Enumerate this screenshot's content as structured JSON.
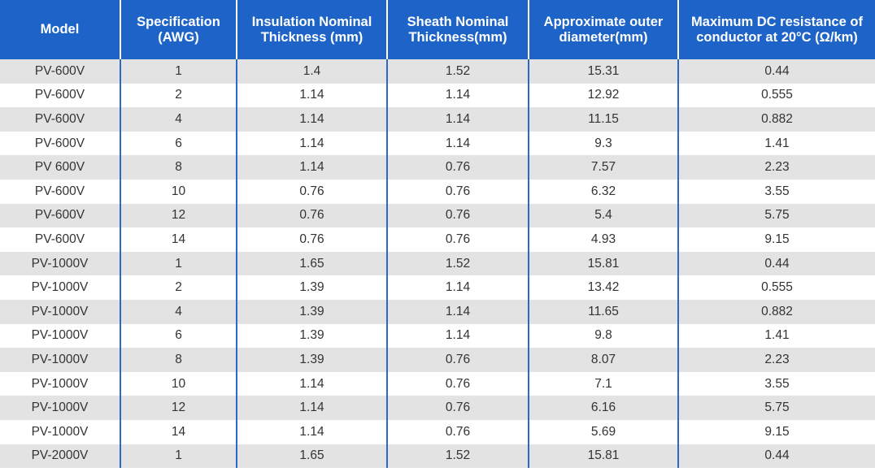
{
  "table": {
    "headers": [
      "Model",
      "Specification (AWG)",
      "Insulation Nominal Thickness (mm)",
      "Sheath Nominal Thickness(mm)",
      "Approximate outer diameter(mm)",
      "Maximum DC resistance of conductor at 20°C (Ω/km)"
    ],
    "rows": [
      [
        "PV-600V",
        "1",
        "1.4",
        "1.52",
        "15.31",
        "0.44"
      ],
      [
        "PV-600V",
        "2",
        "1.14",
        "1.14",
        "12.92",
        "0.555"
      ],
      [
        "PV-600V",
        "4",
        "1.14",
        "1.14",
        "11.15",
        "0.882"
      ],
      [
        "PV-600V",
        "6",
        "1.14",
        "1.14",
        "9.3",
        "1.41"
      ],
      [
        "PV 600V",
        "8",
        "1.14",
        "0.76",
        "7.57",
        "2.23"
      ],
      [
        "PV-600V",
        "10",
        "0.76",
        "0.76",
        "6.32",
        "3.55"
      ],
      [
        "PV-600V",
        "12",
        "0.76",
        "0.76",
        "5.4",
        "5.75"
      ],
      [
        "PV-600V",
        "14",
        "0.76",
        "0.76",
        "4.93",
        "9.15"
      ],
      [
        "PV-1000V",
        "1",
        "1.65",
        "1.52",
        "15.81",
        "0.44"
      ],
      [
        "PV-1000V",
        "2",
        "1.39",
        "1.14",
        "13.42",
        "0.555"
      ],
      [
        "PV-1000V",
        "4",
        "1.39",
        "1.14",
        "11.65",
        "0.882"
      ],
      [
        "PV-1000V",
        "6",
        "1.39",
        "1.14",
        "9.8",
        "1.41"
      ],
      [
        "PV-1000V",
        "8",
        "1.39",
        "0.76",
        "8.07",
        "2.23"
      ],
      [
        "PV-1000V",
        "10",
        "1.14",
        "0.76",
        "7.1",
        "3.55"
      ],
      [
        "PV-1000V",
        "12",
        "1.14",
        "0.76",
        "6.16",
        "5.75"
      ],
      [
        "PV-1000V",
        "14",
        "1.14",
        "0.76",
        "5.69",
        "9.15"
      ],
      [
        "PV-2000V",
        "1",
        "1.65",
        "1.52",
        "15.81",
        "0.44"
      ]
    ]
  },
  "colors": {
    "header_bg": "#1e64c8",
    "header_text": "#ffffff",
    "row_stripe": "#e3e3e3",
    "row_plain": "#ffffff",
    "divider": "#2a6ac6"
  }
}
